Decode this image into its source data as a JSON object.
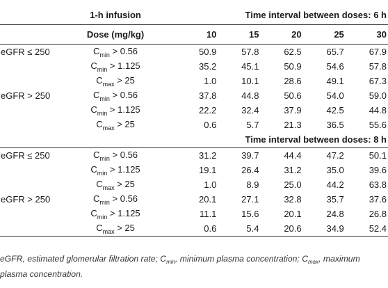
{
  "table": {
    "col_infusion": "1-h infusion",
    "col_dose": "Dose (mg/kg)",
    "interval_6h": "Time interval between doses: 6 h",
    "interval_8h": "Time interval between doses: 8 h",
    "doses": [
      "10",
      "15",
      "20",
      "25",
      "30"
    ],
    "groups_6h": [
      {
        "label": "eGFR ≤ 250",
        "rows": [
          {
            "c": "C",
            "s": "min",
            "t": " > 0.56",
            "v": [
              "50.9",
              "57.8",
              "62.5",
              "65.7",
              "67.9"
            ]
          },
          {
            "c": "C",
            "s": "min",
            "t": " > 1.125",
            "v": [
              "35.2",
              "45.1",
              "50.9",
              "54.6",
              "57.8"
            ]
          },
          {
            "c": "C",
            "s": "max",
            "t": " > 25",
            "v": [
              "1.0",
              "10.1",
              "28.6",
              "49.1",
              "67.3"
            ]
          }
        ]
      },
      {
        "label": "eGFR > 250",
        "rows": [
          {
            "c": "C",
            "s": "min",
            "t": " > 0.56",
            "v": [
              "37.8",
              "44.8",
              "50.6",
              "54.0",
              "59.0"
            ]
          },
          {
            "c": "C",
            "s": "min",
            "t": " > 1.125",
            "v": [
              "22.2",
              "32.4",
              "37.9",
              "42.5",
              "44.8"
            ]
          },
          {
            "c": "C",
            "s": "max",
            "t": " > 25",
            "v": [
              "0.6",
              "5.7",
              "21.3",
              "36.5",
              "55.6"
            ]
          }
        ]
      }
    ],
    "groups_8h": [
      {
        "label": "eGFR ≤ 250",
        "rows": [
          {
            "c": "C",
            "s": "min",
            "t": " > 0.56",
            "v": [
              "31.2",
              "39.7",
              "44.4",
              "47.2",
              "50.1"
            ]
          },
          {
            "c": "C",
            "s": "min",
            "t": " > 1.125",
            "v": [
              "19.1",
              "26.4",
              "31.2",
              "35.0",
              "39.6"
            ]
          },
          {
            "c": "C",
            "s": "max",
            "t": " > 25",
            "v": [
              "1.0",
              "8.9",
              "25.0",
              "44.2",
              "63.8"
            ]
          }
        ]
      },
      {
        "label": "eGFR > 250",
        "rows": [
          {
            "c": "C",
            "s": "min",
            "t": " > 0.56",
            "v": [
              "20.1",
              "27.1",
              "32.8",
              "35.7",
              "37.6"
            ]
          },
          {
            "c": "C",
            "s": "min",
            "t": " > 1.125",
            "v": [
              "11.1",
              "15.6",
              "20.1",
              "24.8",
              "26.8"
            ]
          },
          {
            "c": "C",
            "s": "max",
            "t": " > 25",
            "v": [
              "0.6",
              "5.4",
              "20.6",
              "34.9",
              "52.4"
            ]
          }
        ]
      }
    ]
  },
  "footnote": {
    "p1": "eGFR, estimated glomerular filtration rate; C",
    "s1": "min",
    "p2": ", minimum plasma concentration; C",
    "s2": "max",
    "p3": ", maximum plasma concentration."
  }
}
